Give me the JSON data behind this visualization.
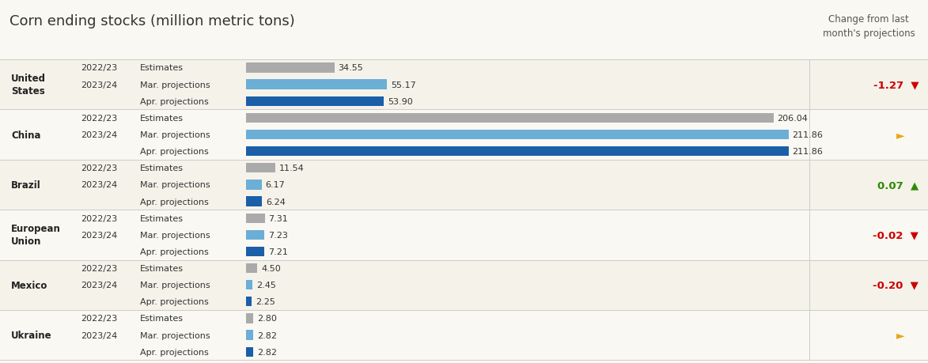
{
  "title": "Corn ending stocks (million metric tons)",
  "title_fontsize": 13,
  "background_color": "#faf8f2",
  "countries": [
    {
      "name": "United\nStates",
      "rows": [
        {
          "year": "2022/23",
          "label": "Estimates",
          "value": 34.55,
          "color": "#aaaaaa"
        },
        {
          "year": "2023/24",
          "label": "Mar. projections",
          "value": 55.17,
          "color": "#6baed6"
        },
        {
          "year": "",
          "label": "Apr. projections",
          "value": 53.9,
          "color": "#1a5fa8"
        }
      ],
      "change": "-1.27",
      "change_color": "#cc0000",
      "change_symbol": "▼"
    },
    {
      "name": "China",
      "rows": [
        {
          "year": "2022/23",
          "label": "Estimates",
          "value": 206.04,
          "color": "#aaaaaa"
        },
        {
          "year": "2023/24",
          "label": "Mar. projections",
          "value": 211.86,
          "color": "#6baed6"
        },
        {
          "year": "",
          "label": "Apr. projections",
          "value": 211.86,
          "color": "#1a5fa8"
        }
      ],
      "change": "",
      "change_color": "#e6a817",
      "change_symbol": "►"
    },
    {
      "name": "Brazil",
      "rows": [
        {
          "year": "2022/23",
          "label": "Estimates",
          "value": 11.54,
          "color": "#aaaaaa"
        },
        {
          "year": "2023/24",
          "label": "Mar. projections",
          "value": 6.17,
          "color": "#6baed6"
        },
        {
          "year": "",
          "label": "Apr. projections",
          "value": 6.24,
          "color": "#1a5fa8"
        }
      ],
      "change": "0.07",
      "change_color": "#2e8b00",
      "change_symbol": "▲"
    },
    {
      "name": "European\nUnion",
      "rows": [
        {
          "year": "2022/23",
          "label": "Estimates",
          "value": 7.31,
          "color": "#aaaaaa"
        },
        {
          "year": "2023/24",
          "label": "Mar. projections",
          "value": 7.23,
          "color": "#6baed6"
        },
        {
          "year": "",
          "label": "Apr. projections",
          "value": 7.21,
          "color": "#1a5fa8"
        }
      ],
      "change": "-0.02",
      "change_color": "#cc0000",
      "change_symbol": "▼"
    },
    {
      "name": "Mexico",
      "rows": [
        {
          "year": "2022/23",
          "label": "Estimates",
          "value": 4.5,
          "color": "#aaaaaa"
        },
        {
          "year": "2023/24",
          "label": "Mar. projections",
          "value": 2.45,
          "color": "#6baed6"
        },
        {
          "year": "",
          "label": "Apr. projections",
          "value": 2.25,
          "color": "#1a5fa8"
        }
      ],
      "change": "-0.20",
      "change_color": "#cc0000",
      "change_symbol": "▼"
    },
    {
      "name": "Ukraine",
      "rows": [
        {
          "year": "2022/23",
          "label": "Estimates",
          "value": 2.8,
          "color": "#aaaaaa"
        },
        {
          "year": "2023/24",
          "label": "Mar. projections",
          "value": 2.82,
          "color": "#6baed6"
        },
        {
          "year": "",
          "label": "Apr. projections",
          "value": 2.82,
          "color": "#1a5fa8"
        }
      ],
      "change": "",
      "change_color": "#e6a817",
      "change_symbol": "►"
    }
  ],
  "change_header": "Change from last\nmonth's projections",
  "separator_color": "#cccccc",
  "text_color": "#333333",
  "xlim": [
    0,
    220
  ],
  "value_labels": [
    "34.55",
    "55.17",
    "53.90",
    "206.04",
    "211.86",
    "211.86",
    "11.54",
    "6.17",
    "6.24",
    "7.31",
    "7.23",
    "7.21",
    "4.50",
    "2.45",
    "2.25",
    "2.80",
    "2.82",
    "2.82"
  ]
}
